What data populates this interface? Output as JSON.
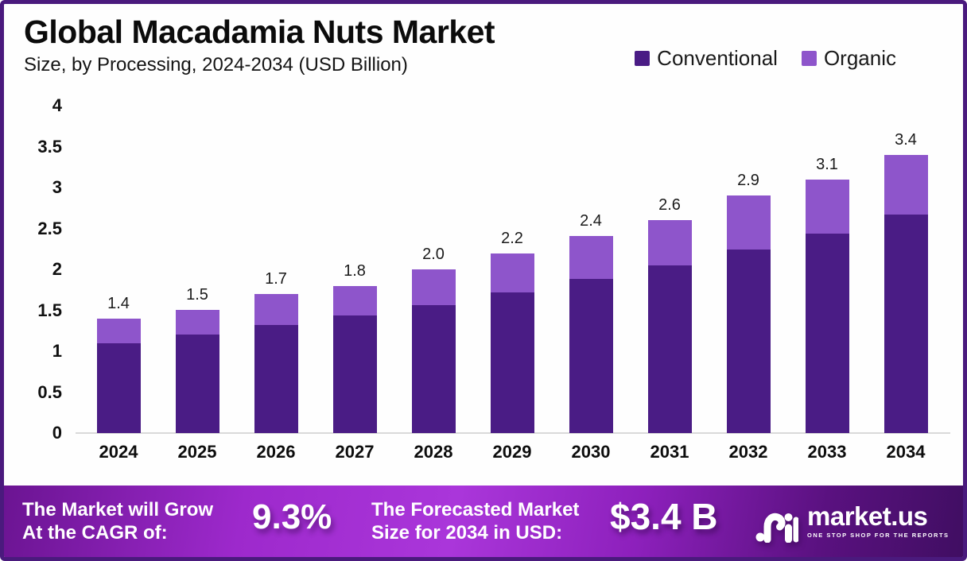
{
  "header": {
    "title": "Global Macadamia Nuts Market",
    "subtitle": "Size, by Processing, 2024-2034 (USD Billion)"
  },
  "legend": [
    {
      "label": "Conventional",
      "color": "#4a1c85"
    },
    {
      "label": "Organic",
      "color": "#8e55cb"
    }
  ],
  "chart_data": {
    "type": "bar",
    "stacked": true,
    "title": "Global Macadamia Nuts Market Size, by Processing, 2024-2034 (USD Billion)",
    "xlabel": "",
    "ylabel": "USD Billion",
    "ylim": [
      0,
      4
    ],
    "grid": false,
    "legend_position": "top-right",
    "categories": [
      "2024",
      "2025",
      "2026",
      "2027",
      "2028",
      "2029",
      "2030",
      "2031",
      "2032",
      "2033",
      "2034"
    ],
    "series": [
      {
        "name": "Conventional",
        "color": "#4a1c85",
        "values": [
          1.1,
          1.2,
          1.32,
          1.44,
          1.56,
          1.72,
          1.88,
          2.05,
          2.24,
          2.44,
          2.67
        ]
      },
      {
        "name": "Organic",
        "color": "#8e55cb",
        "values": [
          0.3,
          0.3,
          0.38,
          0.36,
          0.44,
          0.48,
          0.52,
          0.55,
          0.66,
          0.66,
          0.73
        ]
      }
    ],
    "totals": [
      "1.4",
      "1.5",
      "1.7",
      "1.8",
      "2.0",
      "2.2",
      "2.4",
      "2.6",
      "2.9",
      "3.1",
      "3.4"
    ],
    "yticks": [
      {
        "value": 0,
        "label": "0"
      },
      {
        "value": 0.5,
        "label": "0.5"
      },
      {
        "value": 1,
        "label": "1"
      },
      {
        "value": 1.5,
        "label": "1.5"
      },
      {
        "value": 2,
        "label": "2"
      },
      {
        "value": 2.5,
        "label": "2.5"
      },
      {
        "value": 3,
        "label": "3"
      },
      {
        "value": 3.5,
        "label": "3.5"
      },
      {
        "value": 4,
        "label": "4"
      }
    ]
  },
  "footer": {
    "cagr": {
      "line1": "The Market will Grow",
      "line2": "At the CAGR of:",
      "value": "9.3%"
    },
    "forecast": {
      "line1": "The Forecasted Market",
      "line2": "Size for 2034 in USD:",
      "value": "$3.4 B"
    },
    "brand": {
      "name": "market.us",
      "tagline": "ONE STOP SHOP FOR THE REPORTS"
    }
  },
  "colors": {
    "frame_border": "#4a1a7d",
    "axis_line": "#d9d9d9",
    "banner_gradient": [
      "#6b1492",
      "#aa36da",
      "#400e62"
    ]
  }
}
